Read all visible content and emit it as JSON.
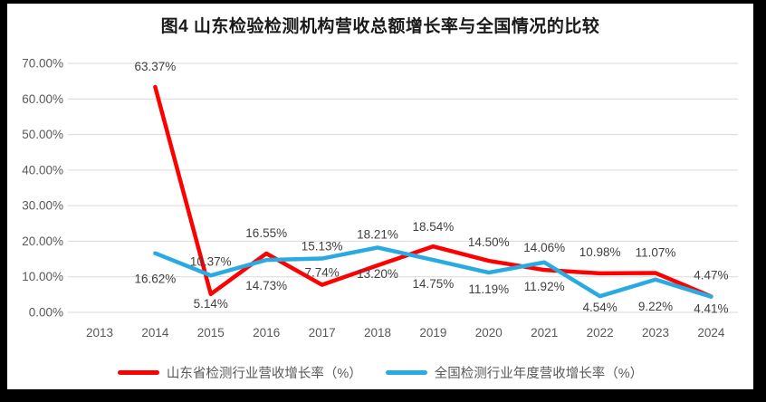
{
  "chart_data": {
    "type": "line",
    "title": "图4  山东检验检测机构营收总额增长率与全国情况的比较",
    "categories": [
      "2013",
      "2014",
      "2015",
      "2016",
      "2017",
      "2018",
      "2019",
      "2020",
      "2021",
      "2022",
      "2023",
      "2024"
    ],
    "series": [
      {
        "name": "山东省检测行业营收增长率（%）",
        "color": "#FF0000",
        "values": [
          null,
          63.37,
          5.14,
          16.55,
          7.74,
          13.2,
          18.54,
          14.5,
          11.92,
          10.98,
          11.07,
          4.47
        ],
        "labels": [
          null,
          "63.37%",
          "5.14%",
          "16.55%",
          "7.74%",
          "13.20%",
          "18.54%",
          "14.50%",
          "11.92%",
          "10.98%",
          "11.07%",
          "4.47%"
        ]
      },
      {
        "name": "全国检测行业年度营收增长率（%）",
        "color": "#29ABE2",
        "values": [
          null,
          16.62,
          10.37,
          14.73,
          15.13,
          18.21,
          14.75,
          11.19,
          14.06,
          4.54,
          9.22,
          4.41
        ],
        "labels": [
          null,
          "16.62%",
          "10.37%",
          "14.73%",
          "15.13%",
          "18.21%",
          "14.75%",
          "11.19%",
          "14.06%",
          "4.54%",
          "9.22%",
          "4.41%"
        ]
      }
    ],
    "yticks": [
      "0.00%",
      "10.00%",
      "20.00%",
      "30.00%",
      "40.00%",
      "50.00%",
      "60.00%",
      "70.00%"
    ],
    "ylim": [
      0,
      70
    ],
    "xlabel": "",
    "ylabel": "",
    "grid": true,
    "legend_position": "bottom",
    "gridline_color": "#D9D9D9",
    "frame_color": "#000000"
  }
}
